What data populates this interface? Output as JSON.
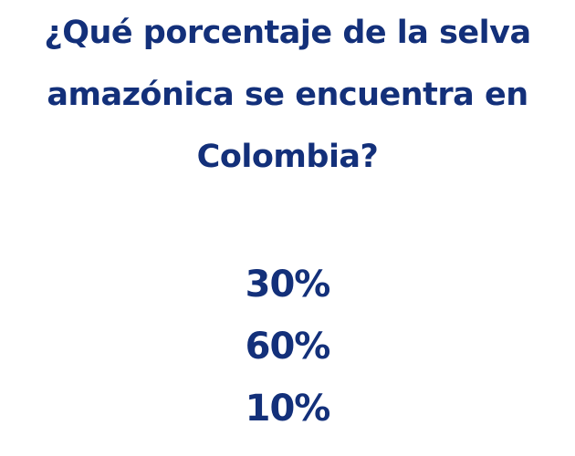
{
  "question": {
    "lines": [
      "¿Qué porcentaje de la selva",
      "amazónica se encuentra en",
      "Colombia?"
    ]
  },
  "options": [
    "30%",
    "60%",
    "10%"
  ],
  "colors": {
    "text": "#13307a",
    "background": "#ffffff"
  }
}
